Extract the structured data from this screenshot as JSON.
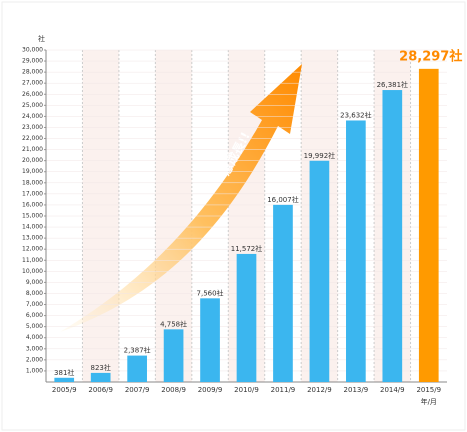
{
  "chart_data": {
    "type": "bar",
    "y_unit": "社",
    "x_unit": "年/月",
    "annotation": "急成長!!",
    "categories": [
      "2005/9",
      "2006/9",
      "2007/9",
      "2008/9",
      "2009/9",
      "2010/9",
      "2011/9",
      "2012/9",
      "2013/9",
      "2014/9",
      "2015/9"
    ],
    "values": [
      381,
      823,
      2387,
      4758,
      7560,
      11572,
      16007,
      19992,
      23632,
      26381,
      28297
    ],
    "value_labels": [
      "381社",
      "823社",
      "2,387社",
      "4,758社",
      "7,560社",
      "11,572社",
      "16,007社",
      "19,992社",
      "23,632社",
      "26,381社",
      "28,297社"
    ],
    "colors": [
      "#3bb6ef",
      "#3bb6ef",
      "#3bb6ef",
      "#3bb6ef",
      "#3bb6ef",
      "#3bb6ef",
      "#3bb6ef",
      "#3bb6ef",
      "#3bb6ef",
      "#3bb6ef",
      "#ff9a00"
    ],
    "ylim": [
      0,
      30000
    ],
    "yticks": [
      {
        "value": 1000,
        "label": "1,000"
      },
      {
        "value": 2000,
        "label": "2,000"
      },
      {
        "value": 3000,
        "label": "3,000"
      },
      {
        "value": 4000,
        "label": "4,000"
      },
      {
        "value": 5000,
        "label": "5,000"
      },
      {
        "value": 6000,
        "label": "6,000"
      },
      {
        "value": 7000,
        "label": "7,000"
      },
      {
        "value": 8000,
        "label": "8,000"
      },
      {
        "value": 9000,
        "label": "9,000"
      },
      {
        "value": 10000,
        "label": "10,000"
      },
      {
        "value": 11000,
        "label": "11,000"
      },
      {
        "value": 12000,
        "label": "12,000"
      },
      {
        "value": 13000,
        "label": "13,000"
      },
      {
        "value": 14000,
        "label": "14,000"
      },
      {
        "value": 15000,
        "label": "15,000"
      },
      {
        "value": 16000,
        "label": "16,000"
      },
      {
        "value": 17000,
        "label": "17,000"
      },
      {
        "value": 18000,
        "label": "18,000"
      },
      {
        "value": 19000,
        "label": "19,000"
      },
      {
        "value": 20000,
        "label": "20,000"
      },
      {
        "value": 21000,
        "label": "21,000"
      },
      {
        "value": 22000,
        "label": "22,000"
      },
      {
        "value": 23000,
        "label": "23,000"
      },
      {
        "value": 24000,
        "label": "24,000"
      },
      {
        "value": 25000,
        "label": "25,000"
      },
      {
        "value": 26000,
        "label": "26,000"
      },
      {
        "value": 27000,
        "label": "27,000"
      },
      {
        "value": 28000,
        "label": "28,000"
      },
      {
        "value": 29000,
        "label": "29,000"
      },
      {
        "value": 30000,
        "label": "30,000"
      }
    ],
    "grid": true
  }
}
